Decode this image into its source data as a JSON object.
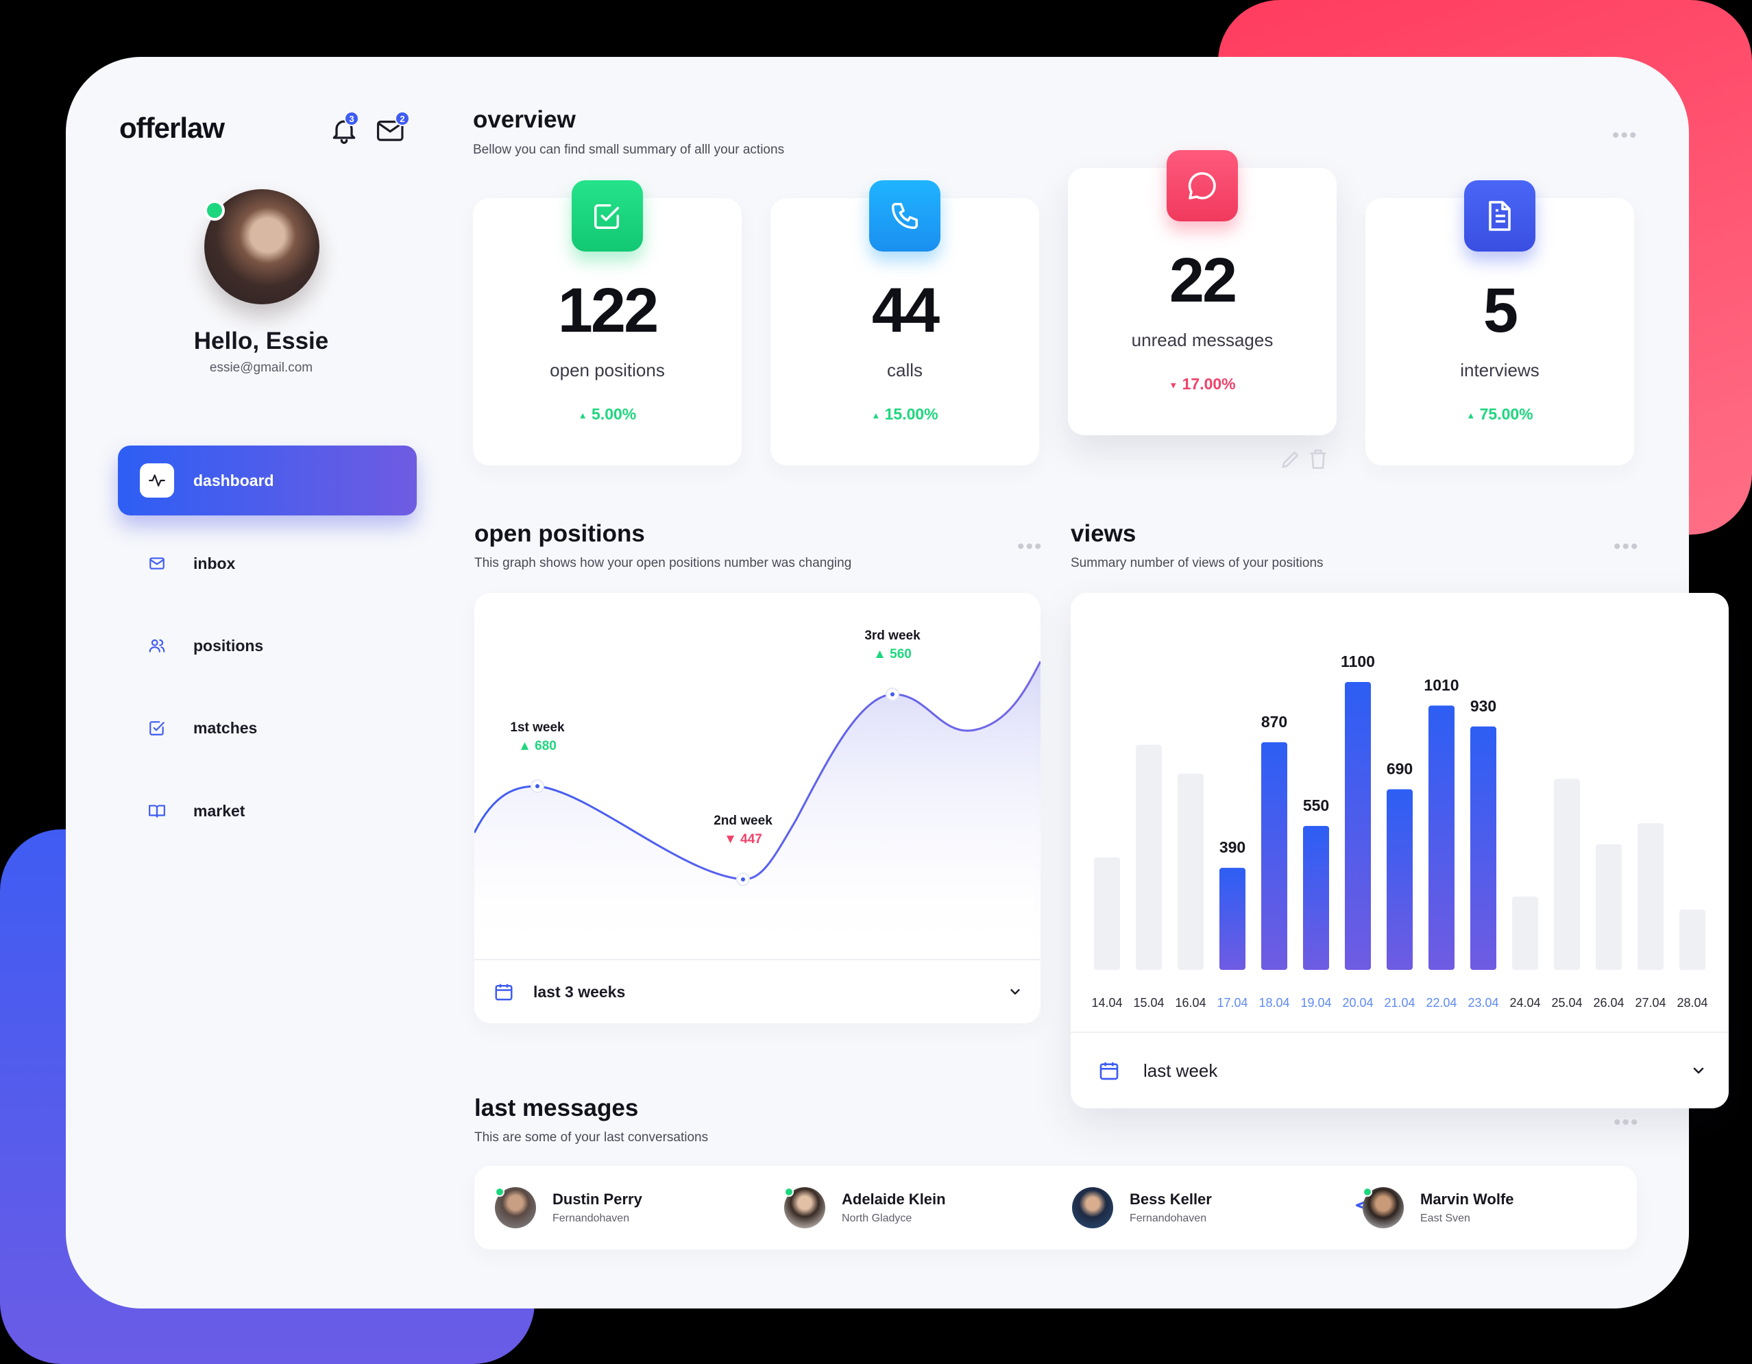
{
  "brand": "offerlaw",
  "header": {
    "notifications_count": "3",
    "messages_count": "2"
  },
  "user": {
    "greeting": "Hello, Essie",
    "email": "essie@gmail.com"
  },
  "nav": [
    {
      "label": "dashboard",
      "icon": "activity-icon",
      "active": true
    },
    {
      "label": "inbox",
      "icon": "mail-icon"
    },
    {
      "label": "positions",
      "icon": "users-icon"
    },
    {
      "label": "matches",
      "icon": "check-square-icon"
    },
    {
      "label": "market",
      "icon": "book-icon"
    }
  ],
  "overview": {
    "title": "overview",
    "subtitle": "Bellow you can find small summary of alll your actions",
    "cards": [
      {
        "value": "122",
        "label": "open positions",
        "delta": "5.00%",
        "trend": "up",
        "icon": "checkbox-icon",
        "color": "#1ed67e"
      },
      {
        "value": "44",
        "label": "calls",
        "delta": "15.00%",
        "trend": "up",
        "icon": "phone-icon",
        "color": "#1aa0f5"
      },
      {
        "value": "22",
        "label": "unread messages",
        "delta": "17.00%",
        "trend": "down",
        "icon": "chat-icon",
        "color": "#f5456a"
      },
      {
        "value": "5",
        "label": "interviews",
        "delta": "75.00%",
        "trend": "up",
        "icon": "document-icon",
        "color": "#3f5cf2"
      }
    ]
  },
  "open_positions": {
    "title": "open positions",
    "subtitle": "This graph shows how your open positions number was changing",
    "period": "last 3 weeks"
  },
  "views": {
    "title": "views",
    "subtitle": "Summary number of views of your positions",
    "period": "last week"
  },
  "last_messages": {
    "title": "last messages",
    "subtitle": "This are some of your last conversations",
    "contacts": [
      {
        "name": "Dustin Perry",
        "city": "Fernandohaven"
      },
      {
        "name": "Adelaide Klein",
        "city": "North Gladyce"
      },
      {
        "name": "Bess Keller",
        "city": "Fernandohaven"
      },
      {
        "name": "Marvin Wolfe",
        "city": "East Sven"
      }
    ]
  },
  "chart_data": [
    {
      "type": "line",
      "points": [
        {
          "label": "1st week",
          "value": 680,
          "trend": "up"
        },
        {
          "label": "2nd week",
          "value": 447,
          "trend": "down"
        },
        {
          "label": "3rd week",
          "value": 560,
          "trend": "up"
        }
      ]
    },
    {
      "type": "bar",
      "categories": [
        "14.04",
        "15.04",
        "16.04",
        "17.04",
        "18.04",
        "19.04",
        "20.04",
        "21.04",
        "22.04",
        "23.04",
        "24.04",
        "25.04",
        "26.04",
        "27.04",
        "28.04"
      ],
      "values": [
        430,
        860,
        750,
        390,
        870,
        550,
        1100,
        690,
        1010,
        930,
        280,
        730,
        480,
        560,
        230
      ],
      "highlighted": [
        false,
        false,
        false,
        true,
        true,
        true,
        true,
        true,
        true,
        true,
        false,
        false,
        false,
        false,
        false
      ],
      "labeled": [
        false,
        false,
        false,
        true,
        true,
        true,
        true,
        true,
        true,
        true,
        false,
        false,
        false,
        false,
        false
      ],
      "ylim": [
        0,
        1100
      ],
      "colors": {
        "highlight": "#3f5cf2",
        "muted": "#eff0f4"
      }
    }
  ]
}
